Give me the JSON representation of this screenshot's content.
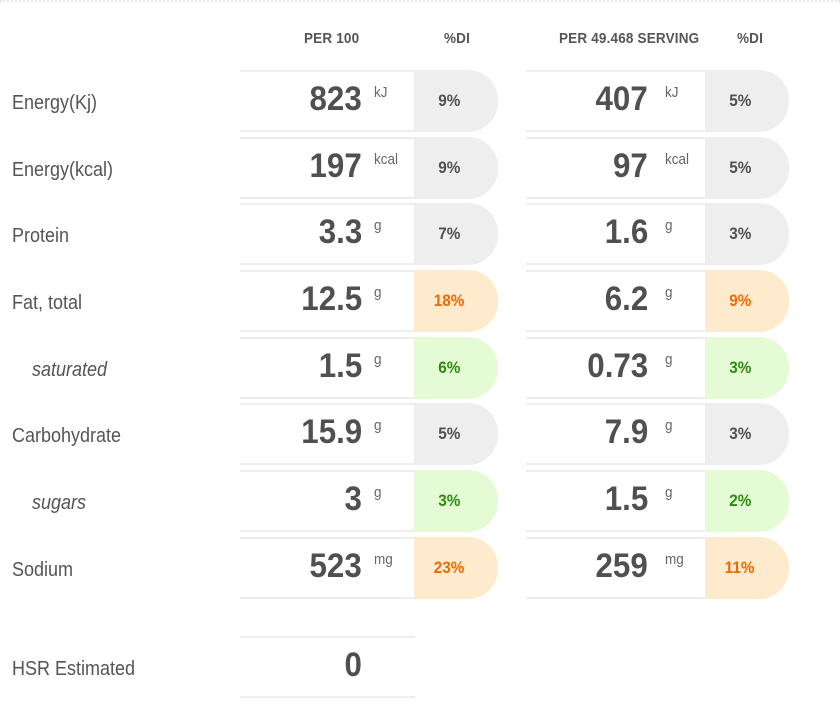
{
  "headers": {
    "per100": "PER 100",
    "di1": "%DI",
    "perServing": "PER 49.468 SERVING",
    "di2": "%DI"
  },
  "rows": [
    {
      "label": "Energy(Kj)",
      "sub": false,
      "v1": "823",
      "u1": "kJ",
      "d1": "9%",
      "c1": "grey",
      "v2": "407",
      "u2": "kJ",
      "d2": "5%",
      "c2": "grey"
    },
    {
      "label": "Energy(kcal)",
      "sub": false,
      "v1": "197",
      "u1": "kcal",
      "d1": "9%",
      "c1": "grey",
      "v2": "97",
      "u2": "kcal",
      "d2": "5%",
      "c2": "grey"
    },
    {
      "label": "Protein",
      "sub": false,
      "v1": "3.3",
      "u1": "g",
      "d1": "7%",
      "c1": "grey",
      "v2": "1.6",
      "u2": "g",
      "d2": "3%",
      "c2": "grey"
    },
    {
      "label": "Fat, total",
      "sub": false,
      "v1": "12.5",
      "u1": "g",
      "d1": "18%",
      "c1": "orange",
      "v2": "6.2",
      "u2": "g",
      "d2": "9%",
      "c2": "orange"
    },
    {
      "label": "saturated",
      "sub": true,
      "v1": "1.5",
      "u1": "g",
      "d1": "6%",
      "c1": "green",
      "v2": "0.73",
      "u2": "g",
      "d2": "3%",
      "c2": "green"
    },
    {
      "label": "Carbohydrate",
      "sub": false,
      "v1": "15.9",
      "u1": "g",
      "d1": "5%",
      "c1": "grey",
      "v2": "7.9",
      "u2": "g",
      "d2": "3%",
      "c2": "grey"
    },
    {
      "label": "sugars",
      "sub": true,
      "v1": "3",
      "u1": "g",
      "d1": "3%",
      "c1": "green",
      "v2": "1.5",
      "u2": "g",
      "d2": "2%",
      "c2": "green"
    },
    {
      "label": "Sodium",
      "sub": false,
      "v1": "523",
      "u1": "mg",
      "d1": "23%",
      "c1": "orange",
      "v2": "259",
      "u2": "mg",
      "d2": "11%",
      "c2": "orange"
    }
  ],
  "hsr": {
    "label": "HSR Estimated",
    "value": "0"
  },
  "colors": {
    "grey_pill": "#eeeeee",
    "orange_pill": "#feeacc",
    "orange_text": "#f06a00",
    "green_pill": "#e4fbd5",
    "green_text": "#2e8b0e"
  }
}
